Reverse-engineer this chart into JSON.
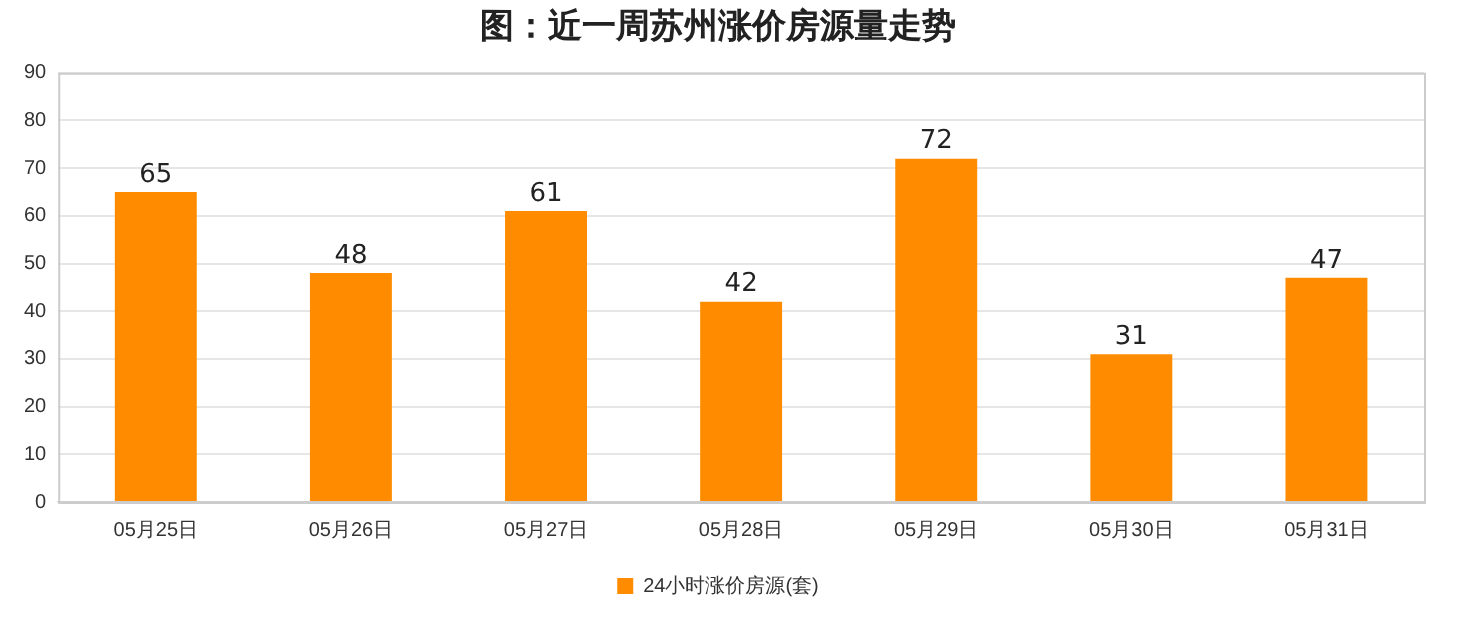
{
  "chart_data": {
    "type": "bar",
    "title": "图：近一周苏州涨价房源量走势",
    "categories": [
      "05月25日",
      "05月26日",
      "05月27日",
      "05月28日",
      "05月29日",
      "05月30日",
      "05月31日"
    ],
    "series": [
      {
        "name": "24小时涨价房源(套)",
        "color": "#ff8c00",
        "values": [
          65,
          48,
          61,
          42,
          72,
          31,
          47
        ]
      }
    ],
    "ylim": [
      0,
      90
    ],
    "yticks": [
      0,
      10,
      20,
      30,
      40,
      50,
      60,
      70,
      80,
      90
    ],
    "grid": "y",
    "legend": "bottom",
    "data_labels": true
  }
}
